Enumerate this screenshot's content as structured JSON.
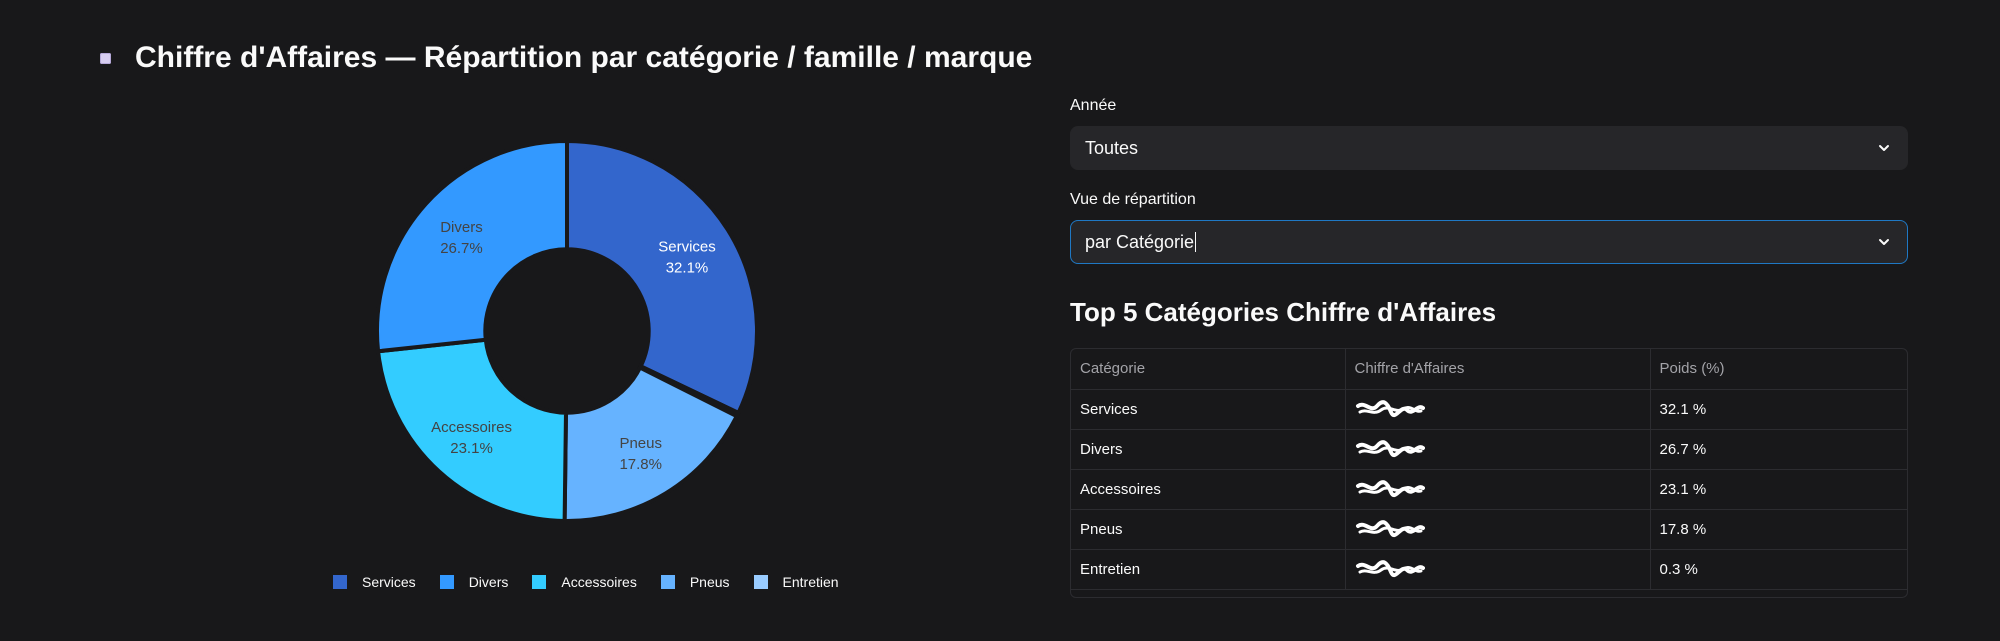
{
  "header": {
    "title": "Chiffre d'Affaires — Répartition par catégorie / famille / marque",
    "icon": "square-bullet-icon"
  },
  "filters": {
    "year_label": "Année",
    "year_value": "Toutes",
    "view_label": "Vue de répartition",
    "view_value": "par Catégorie"
  },
  "top5": {
    "title": "Top 5 Catégories Chiffre d'Affaires",
    "columns": [
      "Catégorie",
      "Chiffre d'Affaires",
      "Poids (%)"
    ],
    "rows": [
      {
        "category": "Services",
        "revenue": "[masqué]",
        "weight": "32.1 %"
      },
      {
        "category": "Divers",
        "revenue": "[masqué]",
        "weight": "26.7 %"
      },
      {
        "category": "Accessoires",
        "revenue": "[masqué]",
        "weight": "23.1 %"
      },
      {
        "category": "Pneus",
        "revenue": "[masqué]",
        "weight": "17.8 %"
      },
      {
        "category": "Entretien",
        "revenue": "[masqué]",
        "weight": "0.3 %"
      }
    ]
  },
  "chart_data": {
    "type": "pie",
    "title": "",
    "hole": 0.43,
    "categories": [
      "Services",
      "Divers",
      "Accessoires",
      "Pneus",
      "Entretien"
    ],
    "values": [
      32.1,
      26.7,
      23.1,
      17.8,
      0.3
    ],
    "order_clockwise_from_top": [
      "Services",
      "Entretien",
      "Pneus",
      "Accessoires",
      "Divers"
    ],
    "labels": {
      "Services": "32.1%",
      "Divers": "26.7%",
      "Accessoires": "23.1%",
      "Pneus": "17.8%",
      "Entretien": ""
    },
    "colors": {
      "Services": "#3366cc",
      "Divers": "#3399ff",
      "Accessoires": "#33ccff",
      "Pneus": "#66b3ff",
      "Entretien": "#99ccff"
    },
    "label_text_colors": {
      "Services": "#ffffff",
      "Divers": "#444444",
      "Accessoires": "#444444",
      "Pneus": "#444444"
    },
    "legend": [
      "Services",
      "Divers",
      "Accessoires",
      "Pneus",
      "Entretien"
    ],
    "legend_position": "bottom"
  },
  "colors": {
    "background": "#18181a",
    "select_background": "#262629",
    "focus_border": "#1f78c4",
    "text": "#fafafa",
    "muted_text": "#a3a3a8"
  }
}
